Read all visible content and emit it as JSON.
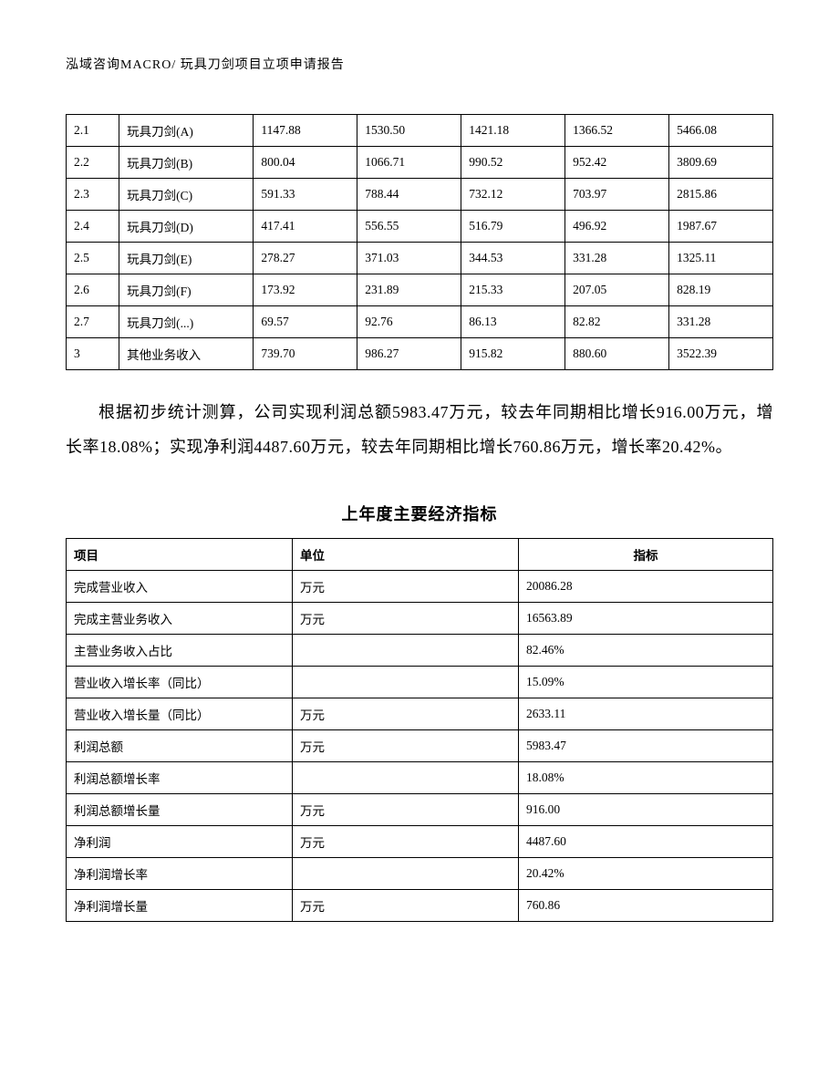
{
  "header": "泓域咨询MACRO/   玩具刀剑项目立项申请报告",
  "table1": {
    "type": "table",
    "border_color": "#000000",
    "background_color": "#ffffff",
    "font_size": 13.5,
    "rows": [
      [
        "2.1",
        "玩具刀剑(A)",
        "1147.88",
        "1530.50",
        "1421.18",
        "1366.52",
        "5466.08"
      ],
      [
        "2.2",
        "玩具刀剑(B)",
        "800.04",
        "1066.71",
        "990.52",
        "952.42",
        "3809.69"
      ],
      [
        "2.3",
        "玩具刀剑(C)",
        "591.33",
        "788.44",
        "732.12",
        "703.97",
        "2815.86"
      ],
      [
        "2.4",
        "玩具刀剑(D)",
        "417.41",
        "556.55",
        "516.79",
        "496.92",
        "1987.67"
      ],
      [
        "2.5",
        "玩具刀剑(E)",
        "278.27",
        "371.03",
        "344.53",
        "331.28",
        "1325.11"
      ],
      [
        "2.6",
        "玩具刀剑(F)",
        "173.92",
        "231.89",
        "215.33",
        "207.05",
        "828.19"
      ],
      [
        "2.7",
        "玩具刀剑(...)",
        "69.57",
        "92.76",
        "86.13",
        "82.82",
        "331.28"
      ],
      [
        "3",
        "其他业务收入",
        "739.70",
        "986.27",
        "915.82",
        "880.60",
        "3522.39"
      ]
    ]
  },
  "paragraph": "根据初步统计测算，公司实现利润总额5983.47万元，较去年同期相比增长916.00万元，增长率18.08%；实现净利润4487.60万元，较去年同期相比增长760.86万元，增长率20.42%。",
  "section_title": "上年度主要经济指标",
  "table2": {
    "type": "table",
    "border_color": "#000000",
    "background_color": "#ffffff",
    "font_size": 13.5,
    "columns": [
      "项目",
      "单位",
      "指标"
    ],
    "rows": [
      [
        "完成营业收入",
        "万元",
        "20086.28"
      ],
      [
        "完成主营业务收入",
        "万元",
        "16563.89"
      ],
      [
        "主营业务收入占比",
        "",
        "82.46%"
      ],
      [
        "营业收入增长率（同比）",
        "",
        "15.09%"
      ],
      [
        "营业收入增长量（同比）",
        "万元",
        "2633.11"
      ],
      [
        "利润总额",
        "万元",
        "5983.47"
      ],
      [
        "利润总额增长率",
        "",
        "18.08%"
      ],
      [
        "利润总额增长量",
        "万元",
        "916.00"
      ],
      [
        "净利润",
        "万元",
        "4487.60"
      ],
      [
        "净利润增长率",
        "",
        "20.42%"
      ],
      [
        "净利润增长量",
        "万元",
        "760.86"
      ]
    ]
  }
}
